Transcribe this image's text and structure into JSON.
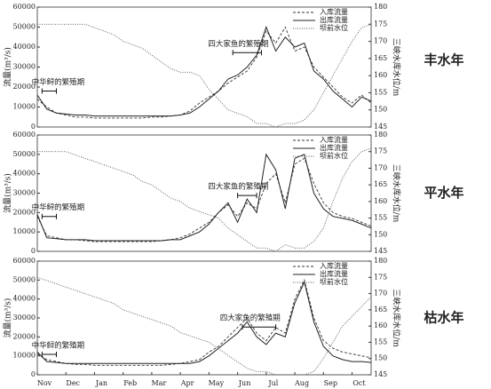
{
  "chart_data": [
    {
      "type": "line",
      "title": "丰水年",
      "y_label": "流量(m³/s)",
      "y2_label": "三峡水库水位/m",
      "annotations": [
        "中华鲟的繁殖期",
        "四大家鱼的繁殖期"
      ],
      "ylim": [
        0,
        60000
      ],
      "yticks": [
        0,
        10000,
        20000,
        30000,
        40000,
        50000,
        60000
      ],
      "y2lim": [
        145,
        180
      ],
      "y2ticks": [
        145,
        150,
        155,
        160,
        165,
        170,
        175,
        180
      ],
      "series": [
        {
          "name": "入库流量",
          "color": "#333333",
          "style": "dashed",
          "values": [
            14000,
            10000,
            7000,
            6000,
            5000,
            5000,
            4500,
            4500,
            4500,
            4500,
            4500,
            4500,
            5000,
            5000,
            5500,
            6000,
            8000,
            12000,
            15000,
            18000,
            22000,
            25000,
            28000,
            35000,
            48000,
            42000,
            50000,
            38000,
            40000,
            30000,
            25000,
            20000,
            15000,
            12000,
            16000,
            12000
          ]
        },
        {
          "name": "出库流量",
          "color": "#222222",
          "style": "solid",
          "values": [
            16000,
            9000,
            7000,
            6500,
            6000,
            6000,
            5500,
            5500,
            5500,
            5500,
            5500,
            5500,
            5500,
            5500,
            5500,
            6000,
            7000,
            10000,
            14000,
            18000,
            24000,
            26000,
            30000,
            36000,
            50000,
            38000,
            45000,
            40000,
            42000,
            28000,
            24000,
            18000,
            14000,
            10000,
            15000,
            13000
          ]
        },
        {
          "name": "坝前水位",
          "color": "#555555",
          "style": "dotted",
          "axis": "y2",
          "values": [
            175,
            175,
            175,
            175,
            175,
            175,
            174,
            173,
            172,
            170,
            169,
            168,
            166,
            164,
            162,
            161,
            161,
            160,
            156,
            153,
            150,
            149,
            148,
            146,
            146,
            145,
            146,
            146,
            147,
            150,
            155,
            160,
            165,
            170,
            174,
            175
          ]
        }
      ]
    },
    {
      "type": "line",
      "title": "平水年",
      "y_label": "流量(m³/s)",
      "y2_label": "三峡水库水位/m",
      "annotations": [
        "中华鲟的繁殖期",
        "四大家鱼的繁殖期"
      ],
      "ylim": [
        0,
        60000
      ],
      "yticks": [
        0,
        10000,
        20000,
        30000,
        40000,
        50000,
        60000
      ],
      "y2lim": [
        145,
        180
      ],
      "y2ticks": [
        145,
        150,
        155,
        160,
        165,
        170,
        175,
        180
      ],
      "series": [
        {
          "name": "入库流量",
          "color": "#333333",
          "style": "dashed",
          "values": [
            18000,
            8000,
            7000,
            6000,
            6000,
            5500,
            5000,
            5000,
            5000,
            5000,
            5000,
            5000,
            5000,
            5500,
            6000,
            7000,
            9000,
            12000,
            15000,
            20000,
            24000,
            18000,
            25000,
            22000,
            35000,
            40000,
            25000,
            45000,
            48000,
            35000,
            25000,
            20000,
            18000,
            17000,
            15000,
            13000
          ]
        },
        {
          "name": "出库流量",
          "color": "#222222",
          "style": "solid",
          "values": [
            19000,
            7000,
            6500,
            6000,
            6000,
            6000,
            5500,
            5500,
            5500,
            5500,
            5500,
            5500,
            5500,
            5500,
            6000,
            6000,
            8000,
            10000,
            14000,
            20000,
            25000,
            15000,
            27000,
            20000,
            50000,
            42000,
            22000,
            48000,
            50000,
            30000,
            22000,
            18000,
            17000,
            16000,
            14000,
            12000
          ]
        },
        {
          "name": "坝前水位",
          "color": "#555555",
          "style": "dotted",
          "axis": "y2",
          "values": [
            175,
            175,
            175,
            175,
            174,
            173,
            172,
            171,
            170,
            169,
            168,
            166,
            165,
            163,
            161,
            160,
            158,
            157,
            156,
            155,
            152,
            150,
            148,
            146,
            146,
            145,
            147,
            146,
            146,
            148,
            152,
            160,
            167,
            172,
            175,
            176
          ]
        }
      ]
    },
    {
      "type": "line",
      "title": "枯水年",
      "y_label": "流量(m³/s)",
      "y2_label": "三峡水库水位/m",
      "annotations": [
        "中华鲟的繁殖期",
        "四大家鱼的繁殖期"
      ],
      "categories": [
        "Nov",
        null,
        null,
        "Dec",
        null,
        null,
        "Jan",
        null,
        null,
        "Feb",
        null,
        null,
        "Mar",
        null,
        null,
        "Apr",
        null,
        null,
        "May",
        null,
        null,
        "Jun",
        null,
        null,
        "Jul",
        null,
        null,
        "Aug",
        null,
        null,
        "Sep",
        null,
        null,
        "Oct",
        null,
        null
      ],
      "ylim": [
        0,
        60000
      ],
      "yticks": [
        0,
        10000,
        20000,
        30000,
        40000,
        50000,
        60000
      ],
      "y2lim": [
        145,
        180
      ],
      "y2ticks": [
        145,
        150,
        155,
        160,
        165,
        170,
        175,
        180
      ],
      "series": [
        {
          "name": "入库流量",
          "color": "#333333",
          "style": "dashed",
          "values": [
            11000,
            8000,
            7000,
            6000,
            5500,
            5500,
            5000,
            5000,
            5000,
            5000,
            5000,
            5000,
            5000,
            5000,
            5500,
            6000,
            7000,
            8000,
            12000,
            15000,
            20000,
            25000,
            30000,
            22000,
            18000,
            25000,
            22000,
            40000,
            50000,
            30000,
            18000,
            14000,
            12000,
            11000,
            10000,
            9000
          ]
        },
        {
          "name": "出库流量",
          "color": "#222222",
          "style": "solid",
          "values": [
            12000,
            7000,
            6500,
            6000,
            6000,
            6000,
            6000,
            6000,
            6000,
            6000,
            6000,
            6000,
            6000,
            6000,
            6000,
            6000,
            6000,
            7000,
            10000,
            14000,
            18000,
            22000,
            28000,
            20000,
            16000,
            22000,
            20000,
            38000,
            49000,
            28000,
            15000,
            10000,
            8000,
            7000,
            7000,
            6500
          ]
        },
        {
          "name": "坝前水位",
          "color": "#555555",
          "style": "dotted",
          "axis": "y2",
          "values": [
            175,
            174,
            173,
            172,
            171,
            170,
            169,
            168,
            167,
            165,
            164,
            163,
            162,
            161,
            160,
            158,
            157,
            156,
            155,
            153,
            151,
            149,
            147,
            146,
            146,
            145,
            145,
            145,
            145,
            146,
            150,
            155,
            160,
            163,
            166,
            169
          ]
        }
      ]
    }
  ]
}
